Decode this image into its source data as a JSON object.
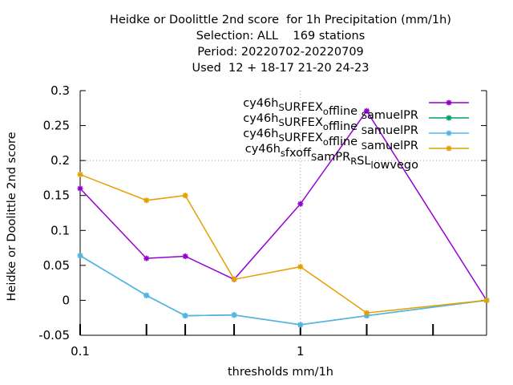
{
  "chart_data": {
    "type": "line",
    "title_lines": [
      "Heidke or Doolittle 2nd score  for 1h Precipitation (mm/1h)",
      "Selection: ALL    169 stations",
      "Period: 20220702-20220709",
      "Used  12 + 18-17 21-20 24-23"
    ],
    "xlabel": "thresholds mm/1h",
    "ylabel": "Heidke or Doolittle 2nd score",
    "x_scale": "log",
    "xlim": [
      0.1,
      7
    ],
    "ylim": [
      -0.05,
      0.3
    ],
    "x_tick_labels": [
      {
        "value": 0.1,
        "label": "0.1"
      },
      {
        "value": 1,
        "label": "1"
      }
    ],
    "x_minor_ticks": [
      0.2,
      0.3,
      0.5,
      2,
      4
    ],
    "y_ticks": [
      {
        "value": -0.05,
        "label": "-0.05"
      },
      {
        "value": 0,
        "label": "0"
      },
      {
        "value": 0.05,
        "label": "0.05"
      },
      {
        "value": 0.1,
        "label": "0.1"
      },
      {
        "value": 0.15,
        "label": "0.15"
      },
      {
        "value": 0.2,
        "label": "0.2"
      },
      {
        "value": 0.25,
        "label": "0.25"
      },
      {
        "value": 0.3,
        "label": "0.3"
      }
    ],
    "grid": "dotted at x=1 and y=0.2",
    "legend_position": "top-right",
    "x": [
      0.1,
      0.2,
      0.3,
      0.5,
      1,
      2,
      7
    ],
    "series": [
      {
        "name": "cy46h_SURFEX_offline_SamuelPR",
        "legend_segments": [
          [
            "cy46h",
            ""
          ],
          [
            "S",
            "sub"
          ],
          [
            "URFEX",
            ""
          ],
          [
            "o",
            "sub"
          ],
          [
            "ffline ",
            ""
          ],
          [
            "S",
            "sub"
          ],
          [
            "amuelPR",
            ""
          ]
        ],
        "color": "#9400d3",
        "marker": "plus-star",
        "values": [
          0.16,
          0.06,
          0.063,
          0.03,
          0.138,
          0.271,
          0.0
        ]
      },
      {
        "name": "cy46h_SURFEX_offline_SamuelPR",
        "legend_segments": [
          [
            "cy46h",
            ""
          ],
          [
            "S",
            "sub"
          ],
          [
            "URFEX",
            ""
          ],
          [
            "o",
            "sub"
          ],
          [
            "ffline ",
            ""
          ],
          [
            "S",
            "sub"
          ],
          [
            "amuelPR",
            ""
          ]
        ],
        "color": "#009e73",
        "marker": "plus-star",
        "values": [
          0.064,
          0.007,
          -0.022,
          -0.021,
          -0.035,
          -0.022,
          0.0
        ]
      },
      {
        "name": "cy46h_SURFEX_offline_SamuelPR",
        "legend_segments": [
          [
            "cy46h",
            ""
          ],
          [
            "S",
            "sub"
          ],
          [
            "URFEX",
            ""
          ],
          [
            "o",
            "sub"
          ],
          [
            "ffline ",
            ""
          ],
          [
            "S",
            "sub"
          ],
          [
            "amuelPR",
            ""
          ]
        ],
        "color": "#56b4e9",
        "marker": "plus-star",
        "values": [
          0.064,
          0.007,
          -0.022,
          -0.021,
          -0.035,
          -0.022,
          0.0
        ]
      },
      {
        "name": "cy46h_sfxoff_SamPR_RSL_lowvego",
        "legend_segments": [
          [
            "cy46h",
            ""
          ],
          [
            "s",
            "sub"
          ],
          [
            "fxoff",
            ""
          ],
          [
            "S",
            "sub"
          ],
          [
            "amPR",
            ""
          ],
          [
            "R",
            "sub"
          ],
          [
            "SL",
            ""
          ],
          [
            "l",
            "sub"
          ],
          [
            "owvego",
            ""
          ]
        ],
        "color": "#e69f00",
        "marker": "plus-star",
        "values": [
          0.18,
          0.143,
          0.15,
          0.03,
          0.048,
          -0.018,
          0.0
        ]
      }
    ]
  }
}
